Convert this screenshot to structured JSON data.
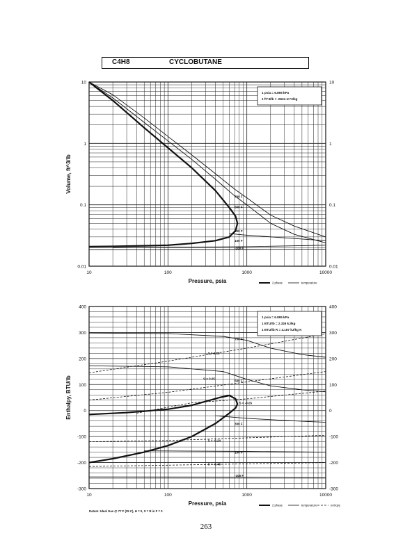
{
  "header": {
    "formula": "C4H8",
    "name": "CYCLOBUTANE"
  },
  "page_number": "263",
  "chart_data": [
    {
      "type": "line",
      "title": "",
      "xlabel": "Pressure,  psia",
      "ylabel": "Volume,  ft^3/lb",
      "xscale": "log",
      "yscale": "log",
      "xlim": [
        10,
        10000
      ],
      "ylim": [
        0.01,
        10
      ],
      "x_tick_labels": [
        "10",
        "100",
        "1000",
        "10000"
      ],
      "y_tick_labels": [
        "10",
        "1",
        "0.1",
        "0.01"
      ],
      "y_ticks": [
        10,
        1,
        0.1,
        0.01
      ],
      "grid": true,
      "info_box": [
        "1 psia = 6.895 kPa",
        "1 ft^3/lb = .0624 m^3/kg"
      ],
      "legend": [
        "2 phase",
        "temperature"
      ],
      "legend_placement": "bottom-right",
      "series": [
        {
          "kind": "2 phase",
          "x": [
            10,
            20,
            50,
            100,
            200,
            400,
            600,
            720,
            760,
            720,
            600,
            400,
            200,
            100,
            50,
            20,
            10
          ],
          "y": [
            10,
            5,
            1.8,
            0.85,
            0.4,
            0.17,
            0.09,
            0.065,
            0.05,
            0.038,
            0.03,
            0.026,
            0.0235,
            0.022,
            0.0215,
            0.021,
            0.0208
          ]
        },
        {
          "kind": "temperature",
          "x": [
            10,
            20,
            50,
            100,
            200,
            400,
            700,
            1000,
            2000,
            4000,
            10000
          ],
          "y": [
            10,
            5.5,
            2.2,
            1.1,
            0.55,
            0.26,
            0.14,
            0.1,
            0.05,
            0.033,
            0.024
          ]
        },
        {
          "kind": "temperature",
          "x": [
            10,
            20,
            50,
            100,
            200,
            400,
            700,
            1000,
            2000,
            4000,
            10000
          ],
          "y": [
            10,
            6.2,
            2.6,
            1.3,
            0.65,
            0.32,
            0.18,
            0.13,
            0.068,
            0.045,
            0.03
          ]
        },
        {
          "kind": "temperature",
          "x": [
            600,
            1000,
            3000,
            10000
          ],
          "y": [
            0.034,
            0.032,
            0.029,
            0.026
          ]
        },
        {
          "kind": "temperature",
          "x": [
            20,
            100,
            400,
            1000,
            10000
          ],
          "y": [
            0.02,
            0.0204,
            0.0206,
            0.0208,
            0.022
          ]
        },
        {
          "kind": "temperature",
          "x": [
            10,
            100,
            1000,
            10000
          ],
          "y": [
            0.0185,
            0.0186,
            0.0187,
            0.019
          ]
        }
      ],
      "annotations": [
        {
          "text": "700 F",
          "x": 700,
          "y": 0.13
        },
        {
          "text": "500 F",
          "x": 700,
          "y": 0.088
        },
        {
          "text": "300 F",
          "x": 700,
          "y": 0.036
        },
        {
          "text": "100 F",
          "x": 700,
          "y": 0.025
        },
        {
          "text": "-100 F",
          "x": 700,
          "y": 0.019
        }
      ]
    },
    {
      "type": "line",
      "title": "",
      "xlabel": "Pressure,  psia",
      "ylabel": "Enthalpy,  BTU/lb",
      "xscale": "log",
      "xlim": [
        10,
        10000
      ],
      "ylim": [
        -300,
        400
      ],
      "x_tick_labels": [
        "10",
        "100",
        "1000",
        "10000"
      ],
      "y_tick_labels": [
        "400",
        "300",
        "200",
        "100",
        "0",
        "-100",
        "-200",
        "-300"
      ],
      "y_ticks": [
        400,
        300,
        200,
        100,
        0,
        -100,
        -200,
        -300
      ],
      "grid": true,
      "info_box": [
        "1 psia = 6.895 kPa",
        "1 BTU/lb = 2.326 kJ/kg",
        "1 BTU/lb R = 4.187 kJ/kg K"
      ],
      "footnote": "Datum: Ideal Gas @ 77 F (25 C),  H = 0,  S = R in F = 0",
      "legend": [
        "2 phase",
        "temperature",
        "entropy"
      ],
      "legend_placement": "bottom-right",
      "series": [
        {
          "kind": "2 phase",
          "x": [
            10,
            30,
            100,
            200,
            300,
            450,
            600,
            720,
            760,
            720,
            600,
            400,
            200,
            100,
            50,
            20,
            10
          ],
          "y": [
            -15,
            -8,
            5,
            20,
            35,
            50,
            58,
            45,
            25,
            10,
            -10,
            -50,
            -100,
            -135,
            -160,
            -185,
            -200
          ]
        },
        {
          "kind": "temperature",
          "x": [
            10,
            100,
            500,
            1000,
            2000,
            5000,
            10000
          ],
          "y": [
            298,
            296,
            285,
            270,
            240,
            215,
            205
          ]
        },
        {
          "kind": "temperature",
          "x": [
            10,
            100,
            500,
            1000,
            2000,
            5000,
            10000
          ],
          "y": [
            172,
            168,
            150,
            120,
            95,
            80,
            72
          ]
        },
        {
          "kind": "temperature",
          "x": [
            400,
            1000,
            3000,
            10000
          ],
          "y": [
            -20,
            -30,
            -38,
            -45
          ]
        },
        {
          "kind": "temperature",
          "x": [
            50,
            1000,
            10000
          ],
          "y": [
            -155,
            -157,
            -160
          ]
        },
        {
          "kind": "temperature",
          "x": [
            10,
            1000,
            10000
          ],
          "y": [
            -255,
            -256,
            -258
          ]
        },
        {
          "kind": "entropy",
          "x": [
            10,
            100,
            1000,
            10000
          ],
          "y": [
            145,
            190,
            240,
            295
          ]
        },
        {
          "kind": "entropy",
          "x": [
            10,
            100,
            1000,
            10000
          ],
          "y": [
            40,
            70,
            110,
            150
          ]
        },
        {
          "kind": "entropy",
          "x": [
            40,
            200,
            1000,
            10000
          ],
          "y": [
            -10,
            30,
            45,
            75
          ]
        },
        {
          "kind": "entropy",
          "x": [
            10,
            100,
            1000,
            10000
          ],
          "y": [
            -120,
            -115,
            -105,
            -95
          ]
        },
        {
          "kind": "entropy",
          "x": [
            10,
            100,
            1000,
            10000
          ],
          "y": [
            -215,
            -210,
            -205,
            -200
          ]
        }
      ],
      "annotations": [
        {
          "text": "700 F",
          "x": 700,
          "y": 270
        },
        {
          "text": "500 F",
          "x": 700,
          "y": 110
        },
        {
          "text": "300 F",
          "x": 700,
          "y": -55
        },
        {
          "text": "100 F",
          "x": 700,
          "y": -165
        },
        {
          "text": "-100 F",
          "x": 700,
          "y": -255
        },
        {
          "text": "S = 0.15",
          "x": 320,
          "y": 215
        },
        {
          "text": "S = 0.05",
          "x": 280,
          "y": 118
        },
        {
          "text": "S = -0.05",
          "x": 800,
          "y": 25
        },
        {
          "text": "S = -0.24",
          "x": 320,
          "y": -120
        },
        {
          "text": "S = -0.40",
          "x": 320,
          "y": -210
        }
      ]
    }
  ]
}
